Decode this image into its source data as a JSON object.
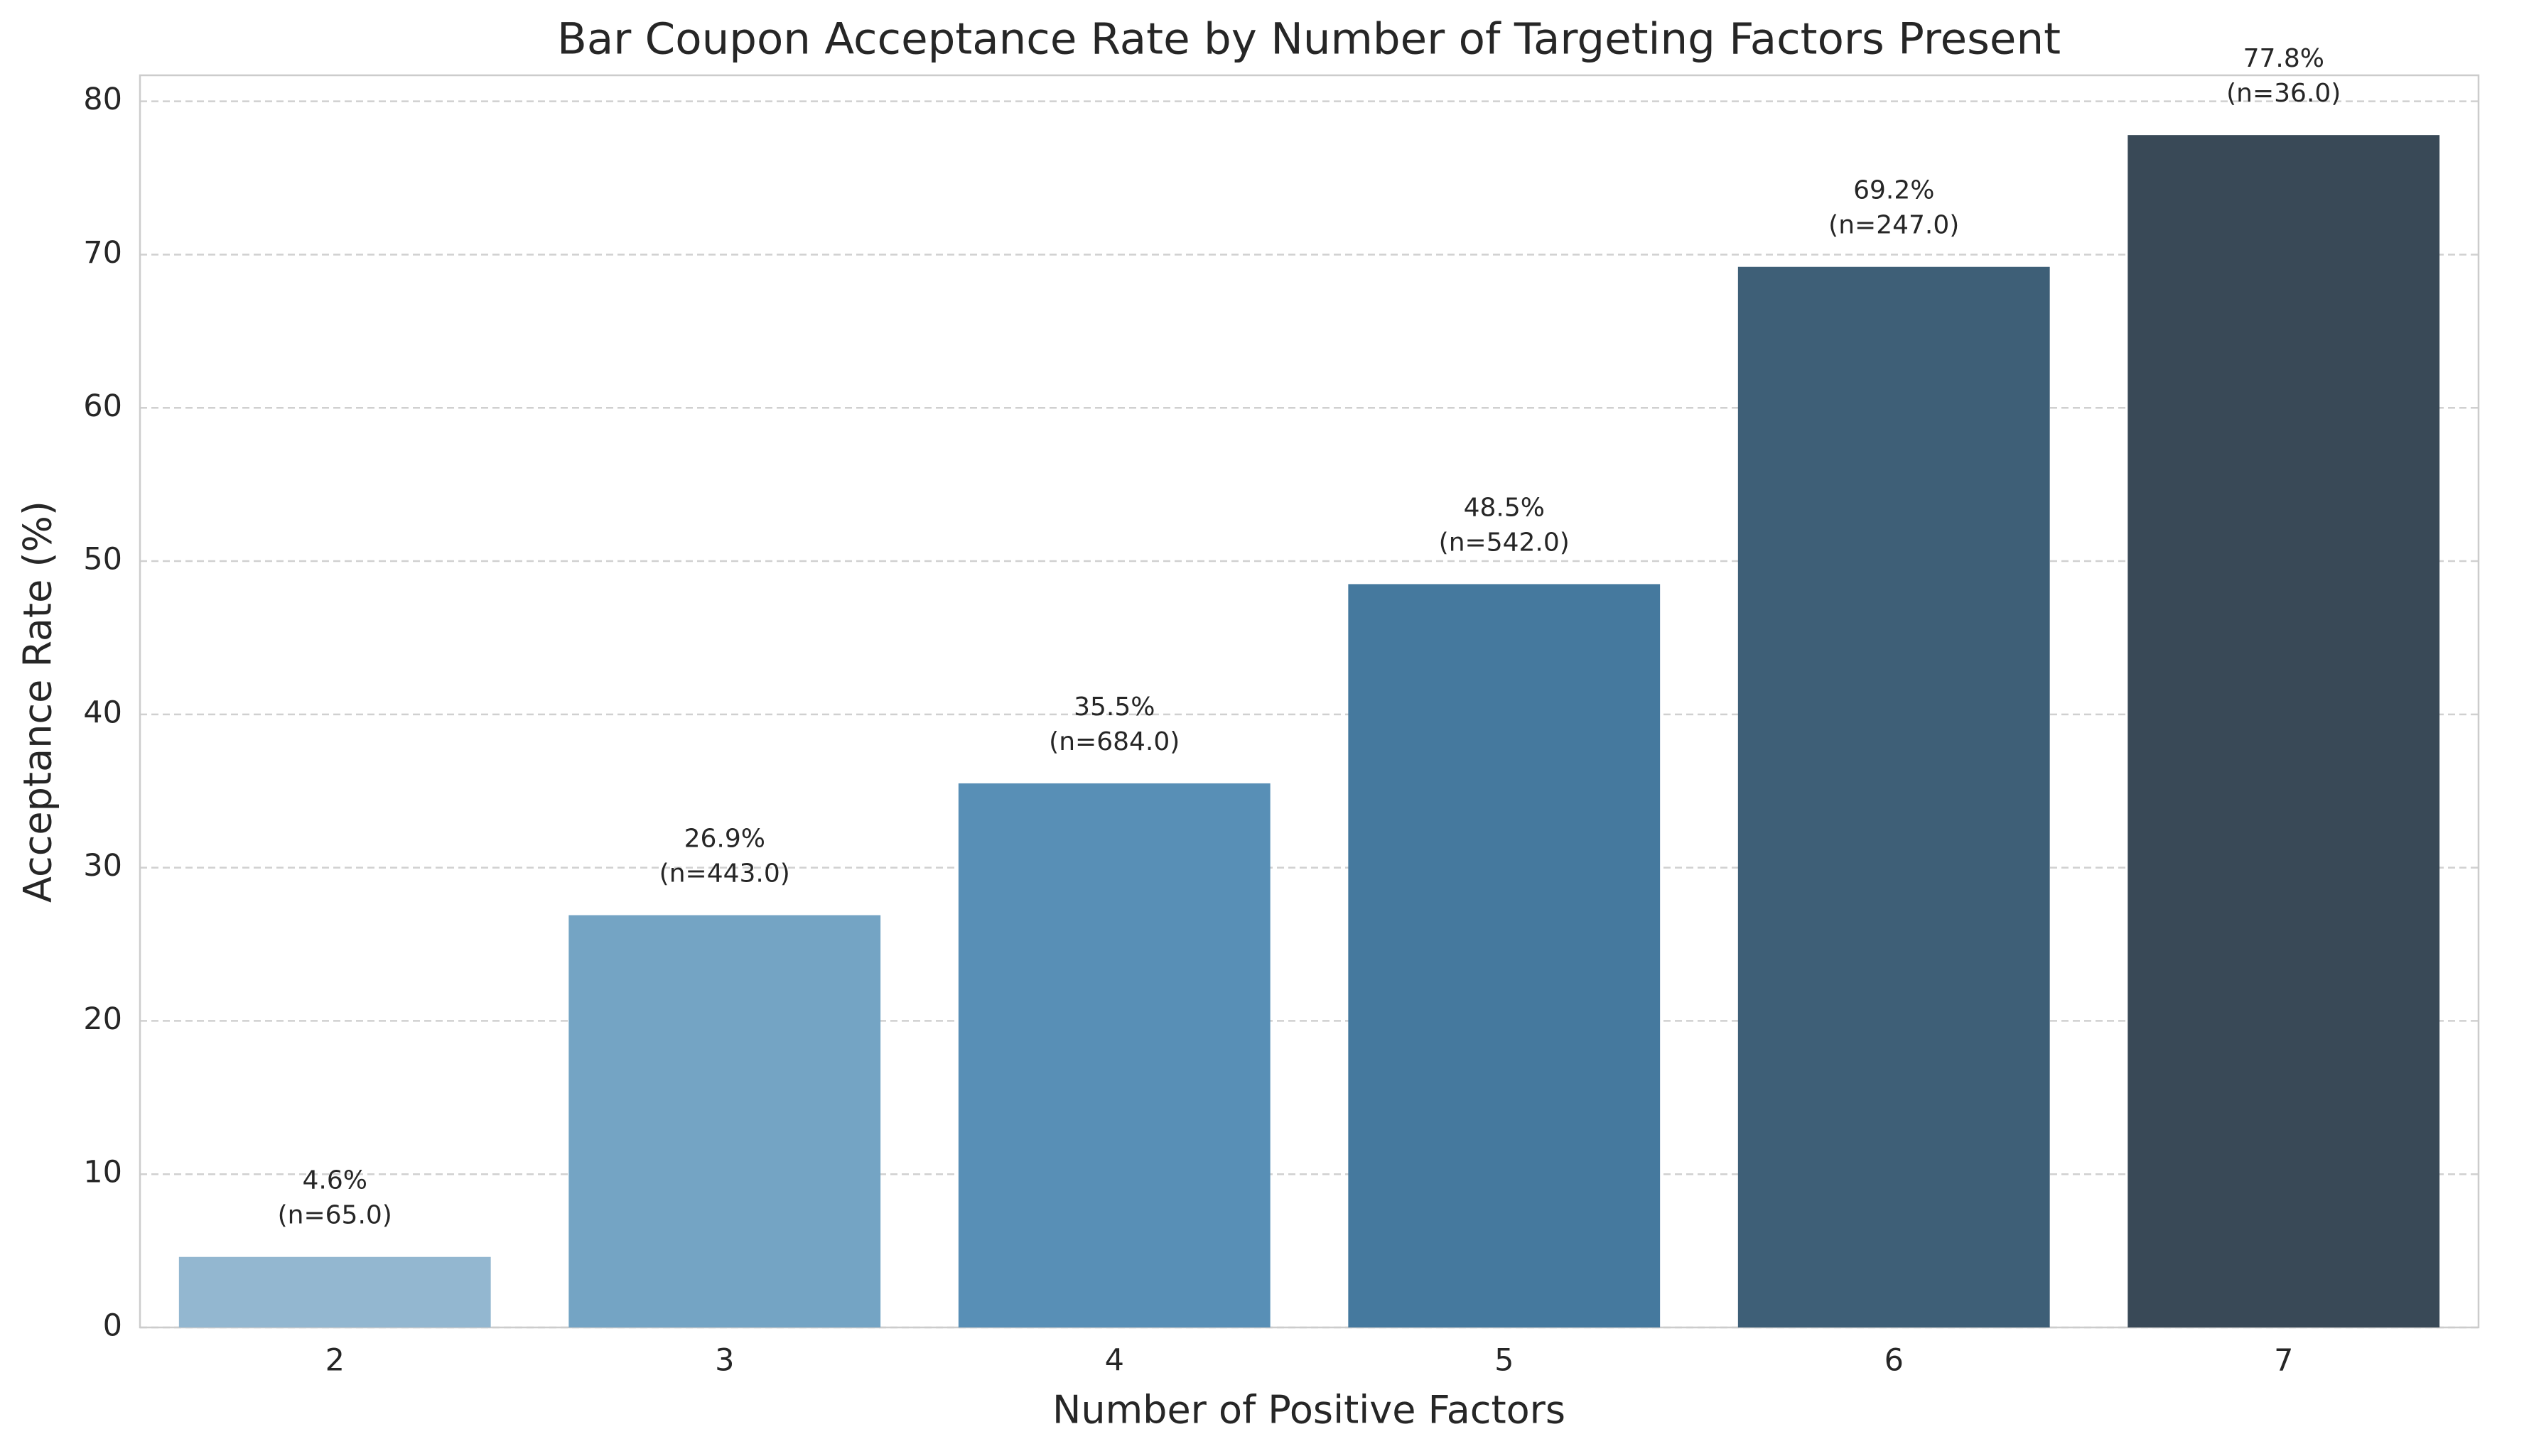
{
  "chart_data": {
    "type": "bar",
    "title": "Bar Coupon Acceptance Rate by Number of Targeting Factors Present",
    "x_label": "Number of Positive Factors",
    "y_label": "Acceptance Rate (%)",
    "categories": [
      "2",
      "3",
      "4",
      "5",
      "6",
      "7"
    ],
    "values": [
      4.6,
      26.9,
      35.5,
      48.5,
      69.2,
      77.8
    ],
    "value_labels": [
      "4.6%",
      "26.9%",
      "35.5%",
      "48.5%",
      "69.2%",
      "77.8%"
    ],
    "sample_labels": [
      "(n=65.0)",
      "(n=443.0)",
      "(n=684.0)",
      "(n=542.0)",
      "(n=247.0)",
      "(n=36.0)"
    ],
    "colors": [
      "#93b7d0",
      "#74a4c4",
      "#588fb6",
      "#45799e",
      "#3e5f77",
      "#394957"
    ],
    "ylim": [
      0,
      81.7
    ],
    "yticks": [
      0,
      10,
      20,
      30,
      40,
      50,
      60,
      70,
      80
    ],
    "grid": true
  }
}
